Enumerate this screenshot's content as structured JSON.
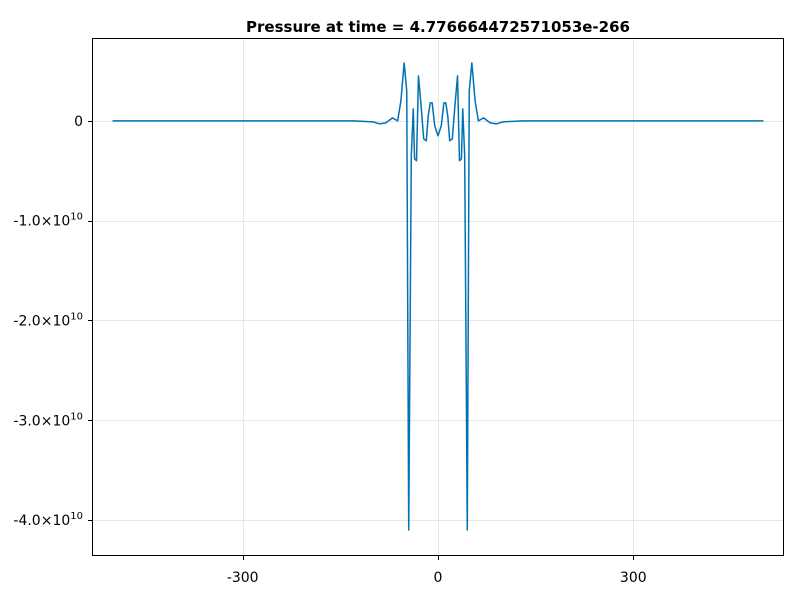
{
  "chart_data": {
    "type": "line",
    "title": "Pressure at time = 4.776664472571053e-266",
    "xlabel": "",
    "ylabel": "",
    "xlim": [
      -530,
      530
    ],
    "ylim": [
      -43500000000.0,
      8200000000.0
    ],
    "grid": true,
    "x_ticks": [
      {
        "value": -300,
        "label": "-300"
      },
      {
        "value": 0,
        "label": "0"
      },
      {
        "value": 300,
        "label": "300"
      }
    ],
    "y_ticks": [
      {
        "value": 0,
        "label": "0",
        "mantissa": "",
        "exponent": ""
      },
      {
        "value": -10000000000.0,
        "label": "-1.0×10¹⁰",
        "mantissa": "-1.0×10",
        "exponent": "10"
      },
      {
        "value": -20000000000.0,
        "label": "-2.0×10¹⁰",
        "mantissa": "-2.0×10",
        "exponent": "10"
      },
      {
        "value": -30000000000.0,
        "label": "-3.0×10¹⁰",
        "mantissa": "-3.0×10",
        "exponent": "10"
      },
      {
        "value": -40000000000.0,
        "label": "-4.0×10¹⁰",
        "mantissa": "-4.0×10",
        "exponent": "10"
      }
    ],
    "series": [
      {
        "color": "#0072b2",
        "x": [
          -500,
          -300,
          -130,
          -100,
          -90,
          -80,
          -70,
          -62,
          -57,
          -52,
          -48,
          -45,
          -41,
          -38,
          -36,
          -33,
          -30,
          -26,
          -22,
          -18,
          -15,
          -12,
          -9,
          -5,
          0,
          5,
          9,
          12,
          15,
          18,
          22,
          26,
          30,
          33,
          36,
          38,
          41,
          45,
          48,
          52,
          57,
          62,
          70,
          80,
          90,
          100,
          130,
          300,
          500
        ],
        "y": [
          0,
          0,
          0,
          -100000000.0,
          -300000000.0,
          -200000000.0,
          300000000.0,
          0.0,
          2000000000.0,
          5800000000.0,
          3000000000.0,
          -41000000000.0,
          -3500000000.0,
          1200000000.0,
          -3800000000.0,
          -4000000000.0,
          4500000000.0,
          1500000000.0,
          -1800000000.0,
          -2000000000.0,
          500000000.0,
          1800000000.0,
          1800000000.0,
          -500000000.0,
          -1500000000.0,
          -500000000.0,
          1800000000.0,
          1800000000.0,
          500000000.0,
          -2000000000.0,
          -1800000000.0,
          1500000000.0,
          4500000000.0,
          -4000000000.0,
          -3800000000.0,
          1200000000.0,
          -3500000000.0,
          -41000000000.0,
          3000000000.0,
          5800000000.0,
          2000000000.0,
          0.0,
          300000000.0,
          -200000000.0,
          -300000000.0,
          -100000000.0,
          0,
          0,
          0
        ]
      }
    ]
  }
}
